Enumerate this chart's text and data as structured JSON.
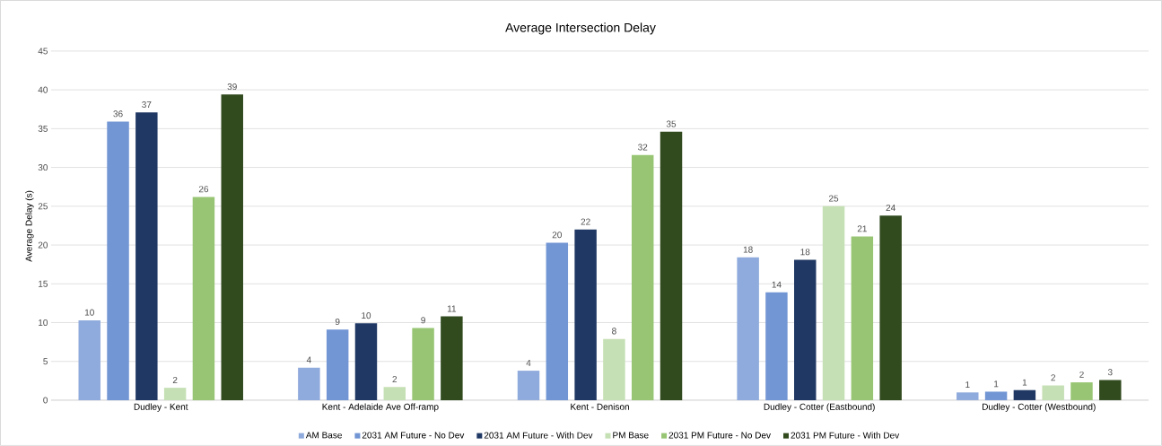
{
  "chart_data": {
    "type": "bar",
    "title": "Average Intersection Delay",
    "ylabel": "Average Delay (s)",
    "categories": [
      "Dudley - Kent",
      "Kent - Adelaide Ave Off-ramp",
      "Kent - Denison",
      "Dudley - Cotter (Eastbound)",
      "Dudley - Cotter (Westbound)"
    ],
    "series": [
      {
        "name": "AM Base",
        "color": "#8faadc",
        "values": [
          10.3,
          4.2,
          3.8,
          18.4,
          1.0
        ],
        "value_labels": [
          "10",
          "4",
          "4",
          "18",
          "1"
        ]
      },
      {
        "name": "2031 AM Future - No Dev",
        "color": "#7295d4",
        "values": [
          35.9,
          9.1,
          20.3,
          13.9,
          1.1
        ],
        "value_labels": [
          "36",
          "9",
          "20",
          "14",
          "1"
        ]
      },
      {
        "name": "2031 AM Future - With Dev",
        "color": "#203864",
        "values": [
          37.1,
          9.9,
          22.0,
          18.1,
          1.3
        ],
        "value_labels": [
          "37",
          "10",
          "22",
          "18",
          "1"
        ]
      },
      {
        "name": "PM Base",
        "color": "#c5e0b4",
        "values": [
          1.6,
          1.7,
          7.9,
          25.0,
          1.9
        ],
        "value_labels": [
          "2",
          "2",
          "8",
          "25",
          "2"
        ]
      },
      {
        "name": "2031 PM Future - No Dev",
        "color": "#98c574",
        "values": [
          26.2,
          9.3,
          31.6,
          21.1,
          2.3
        ],
        "value_labels": [
          "26",
          "9",
          "32",
          "21",
          "2"
        ]
      },
      {
        "name": "2031 PM Future - With Dev",
        "color": "#314a1e",
        "values": [
          39.4,
          10.8,
          34.6,
          23.8,
          2.6
        ],
        "value_labels": [
          "39",
          "11",
          "35",
          "24",
          "3"
        ]
      }
    ],
    "ylim": [
      0,
      45
    ],
    "yticks": [
      0,
      5,
      10,
      15,
      20,
      25,
      30,
      35,
      40,
      45
    ],
    "grid": "y",
    "legend": "bottom"
  }
}
